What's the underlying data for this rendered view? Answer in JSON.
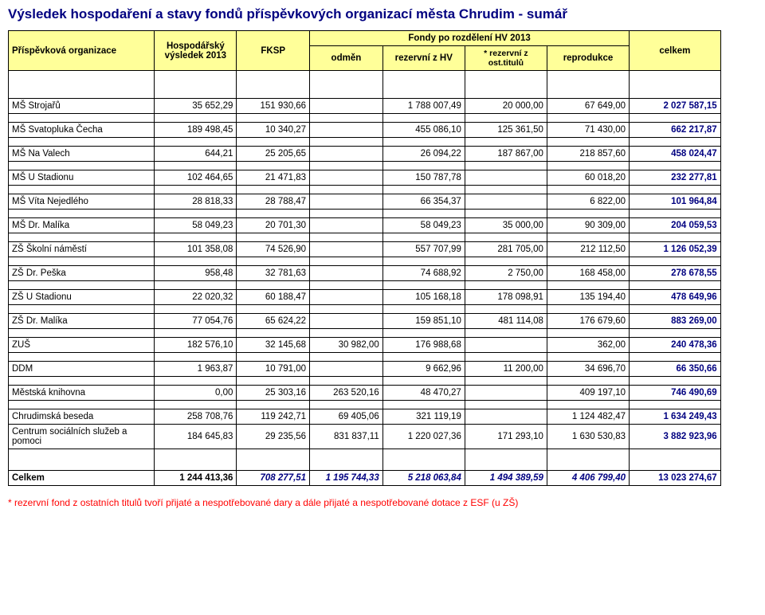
{
  "title": "Výsledek hospodaření a stavy fondů příspěvkových organizací města Chrudim - sumář",
  "header": {
    "org": "Příspěvková organizace",
    "hosp": "Hospodářský výsledek 2013",
    "fondy_group": "Fondy po rozdělení HV 2013",
    "fksp": "FKSP",
    "odmen": "odměn",
    "rezhv": "rezervní z HV",
    "rezt": "* rezervní z ost.titulů",
    "repro": "reprodukce",
    "celkem": "celkem"
  },
  "style": {
    "title_color": "#000080",
    "header_bg": "#ffff99",
    "celkem_color": "#000080",
    "footnote_color": "#ff0000",
    "totals_bold": true,
    "totals_italic_cols": [
      "fksp",
      "odmen",
      "rezhv",
      "rezt",
      "repro"
    ]
  },
  "rows": [
    {
      "org": "MŠ Strojařů",
      "hosp": "35 652,29",
      "fksp": "151 930,66",
      "odmen": "",
      "rezhv": "1 788 007,49",
      "rezt": "20 000,00",
      "repro": "67 649,00",
      "cel": "2 027 587,15"
    },
    {
      "org": "MŠ Svatopluka Čecha",
      "hosp": "189 498,45",
      "fksp": "10 340,27",
      "odmen": "",
      "rezhv": "455 086,10",
      "rezt": "125 361,50",
      "repro": "71 430,00",
      "cel": "662 217,87"
    },
    {
      "org": "MŠ Na Valech",
      "hosp": "644,21",
      "fksp": "25 205,65",
      "odmen": "",
      "rezhv": "26 094,22",
      "rezt": "187 867,00",
      "repro": "218 857,60",
      "cel": "458 024,47"
    },
    {
      "org": "MŠ U Stadionu",
      "hosp": "102 464,65",
      "fksp": "21 471,83",
      "odmen": "",
      "rezhv": "150 787,78",
      "rezt": "",
      "repro": "60 018,20",
      "cel": "232 277,81"
    },
    {
      "org": "MŠ Víta Nejedlého",
      "hosp": "28 818,33",
      "fksp": "28 788,47",
      "odmen": "",
      "rezhv": "66 354,37",
      "rezt": "",
      "repro": "6 822,00",
      "cel": "101 964,84"
    },
    {
      "org": "MŠ Dr. Malíka",
      "hosp": "58 049,23",
      "fksp": "20 701,30",
      "odmen": "",
      "rezhv": "58 049,23",
      "rezt": "35 000,00",
      "repro": "90 309,00",
      "cel": "204 059,53"
    },
    {
      "org": "ZŠ Školní náměstí",
      "hosp": "101 358,08",
      "fksp": "74 526,90",
      "odmen": "",
      "rezhv": "557 707,99",
      "rezt": "281 705,00",
      "repro": "212 112,50",
      "cel": "1 126 052,39"
    },
    {
      "org": "ZŠ Dr. Peška",
      "hosp": "958,48",
      "fksp": "32 781,63",
      "odmen": "",
      "rezhv": "74 688,92",
      "rezt": "2 750,00",
      "repro": "168 458,00",
      "cel": "278 678,55"
    },
    {
      "org": "ZŠ U Stadionu",
      "hosp": "22 020,32",
      "fksp": "60 188,47",
      "odmen": "",
      "rezhv": "105 168,18",
      "rezt": "178 098,91",
      "repro": "135 194,40",
      "cel": "478 649,96"
    },
    {
      "org": "ZŠ Dr. Malíka",
      "hosp": "77 054,76",
      "fksp": "65 624,22",
      "odmen": "",
      "rezhv": "159 851,10",
      "rezt": "481 114,08",
      "repro": "176 679,60",
      "cel": "883 269,00"
    },
    {
      "org": "ZUŠ",
      "hosp": "182 576,10",
      "fksp": "32 145,68",
      "odmen": "30 982,00",
      "rezhv": "176 988,68",
      "rezt": "",
      "repro": "362,00",
      "cel": "240 478,36"
    },
    {
      "org": "DDM",
      "hosp": "1 963,87",
      "fksp": "10 791,00",
      "odmen": "",
      "rezhv": "9 662,96",
      "rezt": "11 200,00",
      "repro": "34 696,70",
      "cel": "66 350,66"
    },
    {
      "org": "Městská knihovna",
      "hosp": "0,00",
      "fksp": "25 303,16",
      "odmen": "263 520,16",
      "rezhv": "48 470,27",
      "rezt": "",
      "repro": "409 197,10",
      "cel": "746 490,69"
    },
    {
      "org": "Chrudimská beseda",
      "hosp": "258 708,76",
      "fksp": "119 242,71",
      "odmen": "69 405,06",
      "rezhv": "321 119,19",
      "rezt": "",
      "repro": "1 124 482,47",
      "cel": "1 634 249,43",
      "no_spacer_after": true
    },
    {
      "org": "Centrum sociálních služeb a pomoci",
      "hosp": "184 645,83",
      "fksp": "29 235,56",
      "odmen": "831 837,11",
      "rezhv": "1 220 027,36",
      "rezt": "171 293,10",
      "repro": "1 630 530,83",
      "cel": "3 882 923,96",
      "wrap": true
    }
  ],
  "totals": {
    "org": "Celkem",
    "hosp": "1 244 413,36",
    "fksp": "708 277,51",
    "odmen": "1 195 744,33",
    "rezhv": "5 218 063,84",
    "rezt": "1 494 389,59",
    "repro": "4 406 799,40",
    "cel": "13 023 274,67"
  },
  "footnote": "* rezervní fond z ostatních titulů tvoří přijaté a nespotřebované dary a dále přijaté a nespotřebované dotace z ESF (u ZŠ)"
}
